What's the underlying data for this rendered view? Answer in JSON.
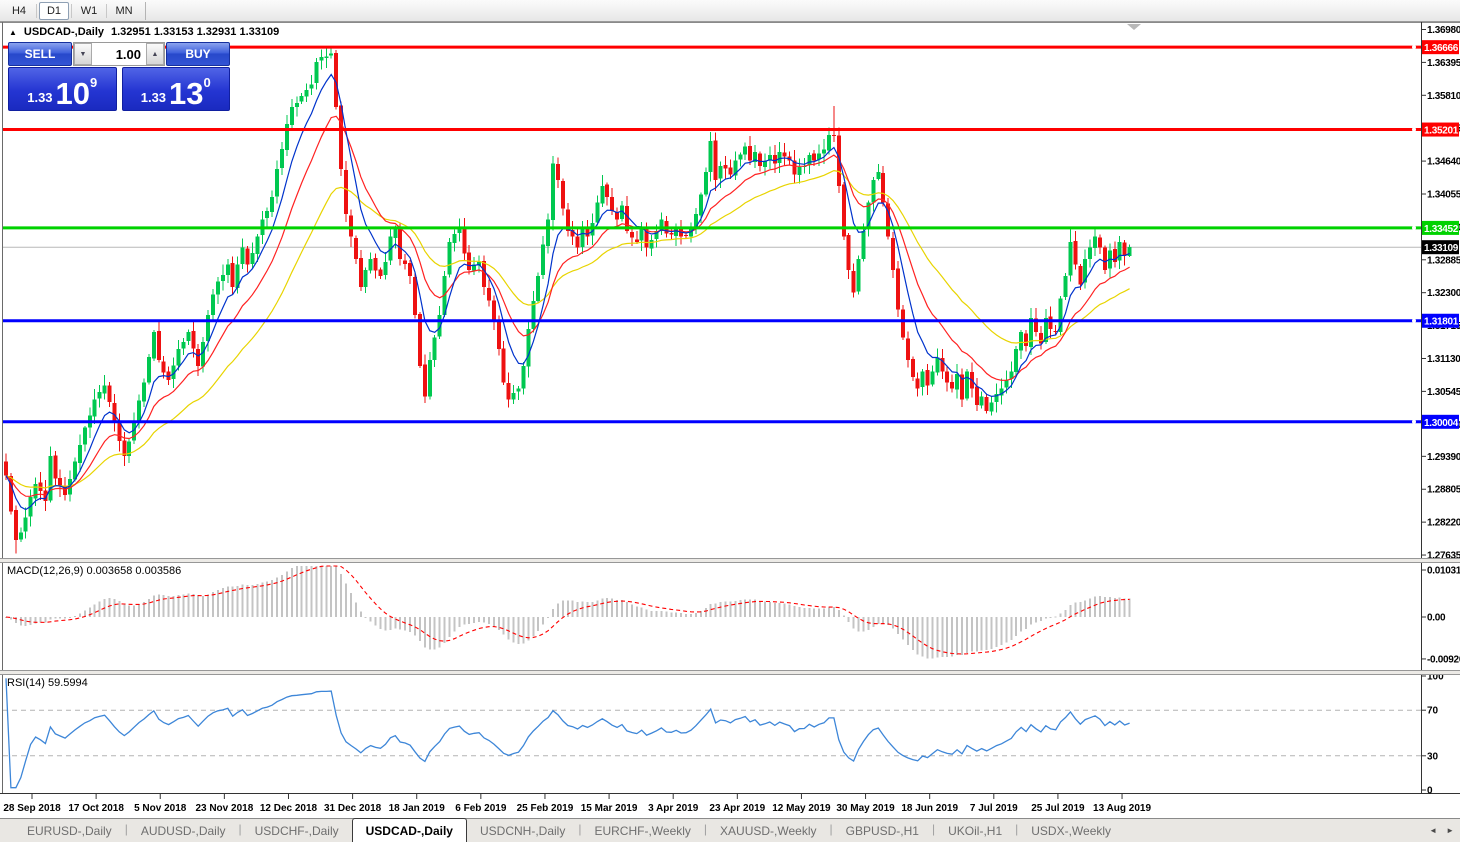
{
  "toolbar": {
    "timeframes": [
      {
        "label": "H4",
        "active": false
      },
      {
        "label": "D1",
        "active": true
      },
      {
        "label": "W1",
        "active": false
      },
      {
        "label": "MN",
        "active": false
      }
    ]
  },
  "chart": {
    "collapse_glyph": "▲",
    "symbol_label": "USDCAD-,Daily",
    "ohlc_text": "1.32951 1.33153 1.32931 1.33109"
  },
  "trade_panel": {
    "sell_label": "SELL",
    "buy_label": "BUY",
    "volume": "1.00",
    "vol_down_glyph": "▼",
    "vol_up_glyph": "▲",
    "sell_price": {
      "small": "1.33",
      "big": "10",
      "sup": "9"
    },
    "buy_price": {
      "small": "1.33",
      "big": "13",
      "sup": "0"
    }
  },
  "macd_panel": {
    "label": "MACD(12,26,9) 0.003658 0.003586",
    "axis": [
      {
        "label": "0.010311",
        "value": 0.010311
      },
      {
        "label": "0.00",
        "value": 0
      },
      {
        "label": "-0.009201",
        "value": -0.009201
      }
    ]
  },
  "rsi_panel": {
    "label": "RSI(14) 59.5994",
    "axis": [
      {
        "label": "100",
        "value": 100
      },
      {
        "label": "70",
        "value": 70
      },
      {
        "label": "30",
        "value": 30
      },
      {
        "label": "0",
        "value": 0
      }
    ],
    "dashed_levels": [
      70,
      30
    ]
  },
  "tabs": {
    "items": [
      {
        "label": "EURUSD-,Daily",
        "active": false
      },
      {
        "label": "AUDUSD-,Daily",
        "active": false
      },
      {
        "label": "USDCHF-,Daily",
        "active": false
      },
      {
        "label": "USDCAD-,Daily",
        "active": true
      },
      {
        "label": "USDCNH-,Daily",
        "active": false
      },
      {
        "label": "EURCHF-,Weekly",
        "active": false
      },
      {
        "label": "XAUUSD-,Weekly",
        "active": false
      },
      {
        "label": "GBPUSD-,H1",
        "active": false
      },
      {
        "label": "UKOil-,H1",
        "active": false
      },
      {
        "label": "USDX-,Weekly",
        "active": false
      }
    ],
    "scroll_left_glyph": "◄",
    "scroll_right_glyph": "►"
  },
  "chart_data": {
    "type": "candlestick",
    "symbol": "USDCAD-",
    "timeframe": "Daily",
    "ohlc_display": {
      "open": 1.32951,
      "high": 1.33153,
      "low": 1.32931,
      "close": 1.33109
    },
    "bid": "1.33109",
    "ask": "1.33130",
    "candles_count": 229,
    "price_axis_ticks": [
      "1.36980",
      "1.36395",
      "1.35810",
      "1.35225",
      "1.34640",
      "1.34055",
      "1.33470",
      "1.32885",
      "1.32300",
      "1.31715",
      "1.31130",
      "1.30545",
      "1.29960",
      "1.29390",
      "1.28805",
      "1.28220",
      "1.27635"
    ],
    "date_axis_ticks": [
      "28 Sep 2018",
      "17 Oct 2018",
      "5 Nov 2018",
      "23 Nov 2018",
      "12 Dec 2018",
      "31 Dec 2018",
      "18 Jan 2019",
      "6 Feb 2019",
      "25 Feb 2019",
      "15 Mar 2019",
      "3 Apr 2019",
      "23 Apr 2019",
      "12 May 2019",
      "30 May 2019",
      "18 Jun 2019",
      "7 Jul 2019",
      "25 Jul 2019",
      "13 Aug 2019"
    ],
    "hlines": [
      {
        "label": "1.36666",
        "value": 1.36666,
        "color": "#ff0000"
      },
      {
        "label": "1.35201",
        "value": 1.35201,
        "color": "#ff0000"
      },
      {
        "label": "1.33452",
        "value": 1.33452,
        "color": "#00d200"
      },
      {
        "label": "1.31801",
        "value": 1.31801,
        "color": "#0000ff"
      },
      {
        "label": "1.30004",
        "value": 1.30004,
        "color": "#0000ff"
      }
    ],
    "current_price": {
      "label": "1.33109",
      "value": 1.33109,
      "line_color": "#b8b8b8",
      "badge_color": "#000000"
    },
    "moving_averages": [
      {
        "name": "slow-ma",
        "period": 32,
        "color": "#e8d400"
      },
      {
        "name": "mid-ma",
        "period": 15,
        "color": "#ff2222"
      },
      {
        "name": "fast-ma",
        "period": 7,
        "color": "#0033cc"
      }
    ],
    "candle_colors": {
      "up": "#00c850",
      "down": "#ee1111"
    },
    "close_waypoints": [
      [
        0,
        1.2905
      ],
      [
        2,
        1.279
      ],
      [
        4,
        1.283
      ],
      [
        6,
        1.289
      ],
      [
        8,
        1.286
      ],
      [
        9,
        1.294
      ],
      [
        10,
        1.29
      ],
      [
        12,
        1.287
      ],
      [
        14,
        1.293
      ],
      [
        16,
        1.299
      ],
      [
        18,
        1.304
      ],
      [
        20,
        1.3065
      ],
      [
        22,
        1.3
      ],
      [
        24,
        1.294
      ],
      [
        26,
        1.3
      ],
      [
        28,
        1.307
      ],
      [
        30,
        1.316
      ],
      [
        31,
        1.311
      ],
      [
        33,
        1.3075
      ],
      [
        35,
        1.313
      ],
      [
        37,
        1.316
      ],
      [
        39,
        1.31
      ],
      [
        41,
        1.319
      ],
      [
        43,
        1.325
      ],
      [
        45,
        1.328
      ],
      [
        46,
        1.324
      ],
      [
        48,
        1.331
      ],
      [
        49,
        1.328
      ],
      [
        51,
        1.333
      ],
      [
        52,
        1.336
      ],
      [
        54,
        1.34
      ],
      [
        55,
        1.345
      ],
      [
        57,
        1.353
      ],
      [
        58,
        1.356
      ],
      [
        60,
        1.358
      ],
      [
        62,
        1.36
      ],
      [
        63,
        1.364
      ],
      [
        65,
        1.365
      ],
      [
        66,
        1.3655
      ],
      [
        67,
        1.356
      ],
      [
        68,
        1.345
      ],
      [
        69,
        1.337
      ],
      [
        70,
        1.333
      ],
      [
        71,
        1.329
      ],
      [
        72,
        1.324
      ],
      [
        73,
        1.327
      ],
      [
        74,
        1.329
      ],
      [
        76,
        1.326
      ],
      [
        77,
        1.3285
      ],
      [
        78,
        1.333
      ],
      [
        79,
        1.3345
      ],
      [
        80,
        1.329
      ],
      [
        82,
        1.326
      ],
      [
        83,
        1.319
      ],
      [
        84,
        1.31
      ],
      [
        85,
        1.3045
      ],
      [
        86,
        1.311
      ],
      [
        88,
        1.319
      ],
      [
        89,
        1.326
      ],
      [
        90,
        1.332
      ],
      [
        92,
        1.3345
      ],
      [
        93,
        1.33
      ],
      [
        94,
        1.327
      ],
      [
        96,
        1.3285
      ],
      [
        97,
        1.324
      ],
      [
        99,
        1.318
      ],
      [
        100,
        1.313
      ],
      [
        101,
        1.307
      ],
      [
        102,
        1.304
      ],
      [
        104,
        1.306
      ],
      [
        105,
        1.31
      ],
      [
        106,
        1.3165
      ],
      [
        107,
        1.3215
      ],
      [
        108,
        1.326
      ],
      [
        110,
        1.336
      ],
      [
        111,
        1.346
      ],
      [
        112,
        1.343
      ],
      [
        113,
        1.338
      ],
      [
        114,
        1.334
      ],
      [
        116,
        1.331
      ],
      [
        117,
        1.3345
      ],
      [
        118,
        1.333
      ],
      [
        120,
        1.339
      ],
      [
        121,
        1.342
      ],
      [
        122,
        1.34
      ],
      [
        124,
        1.336
      ],
      [
        125,
        1.3385
      ],
      [
        126,
        1.334
      ],
      [
        128,
        1.332
      ],
      [
        129,
        1.3345
      ],
      [
        130,
        1.331
      ],
      [
        132,
        1.334
      ],
      [
        133,
        1.336
      ],
      [
        134,
        1.3335
      ],
      [
        136,
        1.3345
      ],
      [
        137,
        1.333
      ],
      [
        139,
        1.3345
      ],
      [
        140,
        1.337
      ],
      [
        141,
        1.3405
      ],
      [
        142,
        1.3445
      ],
      [
        143,
        1.35
      ],
      [
        144,
        1.343
      ],
      [
        145,
        1.3455
      ],
      [
        147,
        1.344
      ],
      [
        148,
        1.3465
      ],
      [
        150,
        1.349
      ],
      [
        151,
        1.3465
      ],
      [
        152,
        1.348
      ],
      [
        153,
        1.3455
      ],
      [
        155,
        1.3475
      ],
      [
        156,
        1.346
      ],
      [
        157,
        1.348
      ],
      [
        159,
        1.3465
      ],
      [
        160,
        1.344
      ],
      [
        162,
        1.3455
      ],
      [
        163,
        1.3475
      ],
      [
        164,
        1.3465
      ],
      [
        166,
        1.3485
      ],
      [
        167,
        1.351
      ],
      [
        168,
        1.351
      ],
      [
        169,
        1.342
      ],
      [
        170,
        1.333
      ],
      [
        171,
        1.327
      ],
      [
        172,
        1.323
      ],
      [
        173,
        1.329
      ],
      [
        174,
        1.334
      ],
      [
        175,
        1.339
      ],
      [
        176,
        1.343
      ],
      [
        177,
        1.3445
      ],
      [
        178,
        1.339
      ],
      [
        179,
        1.333
      ],
      [
        180,
        1.327
      ],
      [
        181,
        1.32
      ],
      [
        182,
        1.315
      ],
      [
        183,
        1.311
      ],
      [
        184,
        1.308
      ],
      [
        185,
        1.306
      ],
      [
        186,
        1.309
      ],
      [
        187,
        1.3065
      ],
      [
        188,
        1.309
      ],
      [
        189,
        1.3115
      ],
      [
        190,
        1.309
      ],
      [
        191,
        1.307
      ],
      [
        192,
        1.306
      ],
      [
        193,
        1.3085
      ],
      [
        194,
        1.304
      ],
      [
        195,
        1.309
      ],
      [
        196,
        1.306
      ],
      [
        197,
        1.303
      ],
      [
        198,
        1.3045
      ],
      [
        199,
        1.302
      ],
      [
        200,
        1.3035
      ],
      [
        201,
        1.305
      ],
      [
        202,
        1.306
      ],
      [
        203,
        1.3075
      ],
      [
        204,
        1.309
      ],
      [
        205,
        1.313
      ],
      [
        206,
        1.316
      ],
      [
        207,
        1.3135
      ],
      [
        208,
        1.3185
      ],
      [
        209,
        1.316
      ],
      [
        210,
        1.314
      ],
      [
        211,
        1.3185
      ],
      [
        212,
        1.3165
      ],
      [
        213,
        1.316
      ],
      [
        214,
        1.322
      ],
      [
        215,
        1.326
      ],
      [
        216,
        1.332
      ],
      [
        217,
        1.328
      ],
      [
        218,
        1.3245
      ],
      [
        219,
        1.329
      ],
      [
        220,
        1.331
      ],
      [
        221,
        1.333
      ],
      [
        222,
        1.331
      ],
      [
        223,
        1.327
      ],
      [
        224,
        1.3305
      ],
      [
        225,
        1.3285
      ],
      [
        226,
        1.332
      ],
      [
        227,
        1.3295
      ],
      [
        228,
        1.33109
      ]
    ],
    "wick_overrides": {
      "2": {
        "low": 1.2766
      },
      "66": {
        "high": 1.36653
      },
      "111": {
        "high": 1.3473
      },
      "143": {
        "high": 1.3516
      },
      "168": {
        "high": 1.3562
      },
      "216": {
        "high": 1.3348
      },
      "221": {
        "high": 1.3346
      },
      "228": {
        "open": 1.32951,
        "high": 1.33153,
        "low": 1.32931,
        "close": 1.33109
      }
    },
    "macd": {
      "fast": 12,
      "slow": 26,
      "signal": 9,
      "main_color": "#c4c4c4",
      "signal_color": "#ff0000",
      "current_main": "0.003658",
      "current_signal": "0.003586",
      "axis_max": 0.010311,
      "axis_min": -0.009201
    },
    "rsi": {
      "period": 14,
      "current": 59.5994,
      "color": "#3d86d8",
      "levels": [
        70,
        30
      ]
    }
  }
}
